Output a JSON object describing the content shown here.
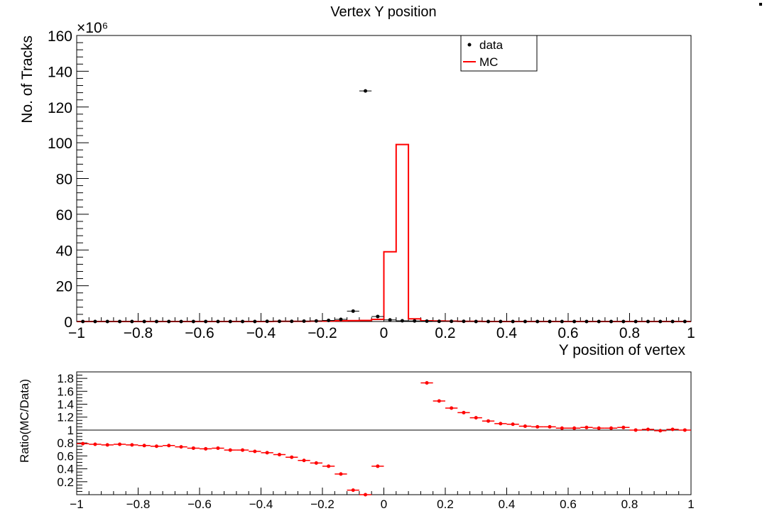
{
  "chart_data": [
    {
      "type": "histogram",
      "title": "Vertex Y position",
      "xlabel": "Y position of vertex",
      "ylabel": "No. of Tracks",
      "y_multiplier": "×10⁶",
      "xlim": [
        -1,
        1
      ],
      "ylim": [
        0,
        160
      ],
      "x_ticks": [
        "−1",
        "−0.8",
        "−0.6",
        "−0.4",
        "−0.2",
        "0",
        "0.2",
        "0.4",
        "0.6",
        "0.8",
        "1"
      ],
      "y_ticks": [
        "0",
        "20",
        "40",
        "60",
        "80",
        "100",
        "120",
        "140",
        "160"
      ],
      "bin_width": 0.04,
      "legend": {
        "placement": "top-right",
        "entries": [
          "data",
          "MC"
        ]
      },
      "series": [
        {
          "name": "data",
          "style": "points",
          "color": "#000000",
          "x": [
            -0.98,
            -0.94,
            -0.9,
            -0.86,
            -0.82,
            -0.78,
            -0.74,
            -0.7,
            -0.66,
            -0.62,
            -0.58,
            -0.54,
            -0.5,
            -0.46,
            -0.42,
            -0.38,
            -0.34,
            -0.3,
            -0.26,
            -0.22,
            -0.18,
            -0.14,
            -0.1,
            -0.06,
            -0.02,
            0.02,
            0.06,
            0.1,
            0.14,
            0.18,
            0.22,
            0.26,
            0.3,
            0.34,
            0.38,
            0.42,
            0.46,
            0.5,
            0.54,
            0.58,
            0.62,
            0.66,
            0.7,
            0.74,
            0.78,
            0.82,
            0.86,
            0.9,
            0.94,
            0.98
          ],
          "values": [
            0,
            0,
            0,
            0,
            0,
            0,
            0,
            0,
            0,
            0,
            0,
            0,
            0,
            0,
            0,
            0.1,
            0.1,
            0.1,
            0.2,
            0.3,
            0.6,
            1.2,
            5.8,
            129,
            2.8,
            0.9,
            0.4,
            0.3,
            0.2,
            0.1,
            0.1,
            0.1,
            0,
            0,
            0,
            0,
            0,
            0,
            0,
            0,
            0,
            0,
            0,
            0,
            0,
            0,
            0,
            0,
            0,
            0
          ]
        },
        {
          "name": "MC",
          "style": "step",
          "color": "#ff0000",
          "x": [
            -0.98,
            -0.94,
            -0.9,
            -0.86,
            -0.82,
            -0.78,
            -0.74,
            -0.7,
            -0.66,
            -0.62,
            -0.58,
            -0.54,
            -0.5,
            -0.46,
            -0.42,
            -0.38,
            -0.34,
            -0.3,
            -0.26,
            -0.22,
            -0.18,
            -0.14,
            -0.1,
            -0.06,
            -0.02,
            0.02,
            0.06,
            0.1,
            0.14,
            0.18,
            0.22,
            0.26,
            0.3,
            0.34,
            0.38,
            0.42,
            0.46,
            0.5,
            0.54,
            0.58,
            0.62,
            0.66,
            0.7,
            0.74,
            0.78,
            0.82,
            0.86,
            0.9,
            0.94,
            0.98
          ],
          "values": [
            0,
            0,
            0,
            0,
            0,
            0,
            0,
            0,
            0,
            0,
            0,
            0,
            0,
            0,
            0,
            0,
            0.1,
            0.1,
            0.1,
            0.2,
            0.3,
            0.4,
            0.5,
            0.6,
            1.2,
            39,
            99,
            1.5,
            0.4,
            0.3,
            0.2,
            0.1,
            0.1,
            0,
            0,
            0,
            0,
            0,
            0,
            0,
            0,
            0,
            0,
            0,
            0,
            0,
            0,
            0,
            0,
            0
          ]
        }
      ]
    },
    {
      "type": "scatter",
      "title": "",
      "xlabel": "",
      "ylabel": "Ratio(MC/Data)",
      "xlim": [
        -1,
        1
      ],
      "ylim": [
        0,
        1.9
      ],
      "x_ticks": [
        "−1",
        "−0.8",
        "−0.6",
        "−0.4",
        "−0.2",
        "0",
        "0.2",
        "0.4",
        "0.6",
        "0.8",
        "1"
      ],
      "y_ticks": [
        "0.2",
        "0.4",
        "0.6",
        "0.8",
        "1",
        "1.2",
        "1.4",
        "1.6",
        "1.8"
      ],
      "reference_line": 1,
      "series": [
        {
          "name": "",
          "color": "#ff0000",
          "x": [
            -0.98,
            -0.94,
            -0.9,
            -0.86,
            -0.82,
            -0.78,
            -0.74,
            -0.7,
            -0.66,
            -0.62,
            -0.58,
            -0.54,
            -0.5,
            -0.46,
            -0.42,
            -0.38,
            -0.34,
            -0.3,
            -0.26,
            -0.22,
            -0.18,
            -0.14,
            -0.1,
            -0.06,
            -0.02,
            0.14,
            0.18,
            0.22,
            0.26,
            0.3,
            0.34,
            0.38,
            0.42,
            0.46,
            0.5,
            0.54,
            0.58,
            0.62,
            0.66,
            0.7,
            0.74,
            0.78,
            0.82,
            0.86,
            0.9,
            0.94,
            0.98
          ],
          "values": [
            0.79,
            0.78,
            0.77,
            0.78,
            0.77,
            0.76,
            0.75,
            0.76,
            0.74,
            0.72,
            0.71,
            0.72,
            0.69,
            0.69,
            0.67,
            0.65,
            0.62,
            0.58,
            0.53,
            0.49,
            0.44,
            0.32,
            0.07,
            0.0,
            0.44,
            1.73,
            1.45,
            1.34,
            1.27,
            1.19,
            1.14,
            1.1,
            1.09,
            1.06,
            1.05,
            1.05,
            1.03,
            1.03,
            1.04,
            1.03,
            1.03,
            1.04,
            1.0,
            1.01,
            0.99,
            1.01,
            1.0
          ]
        }
      ]
    }
  ]
}
